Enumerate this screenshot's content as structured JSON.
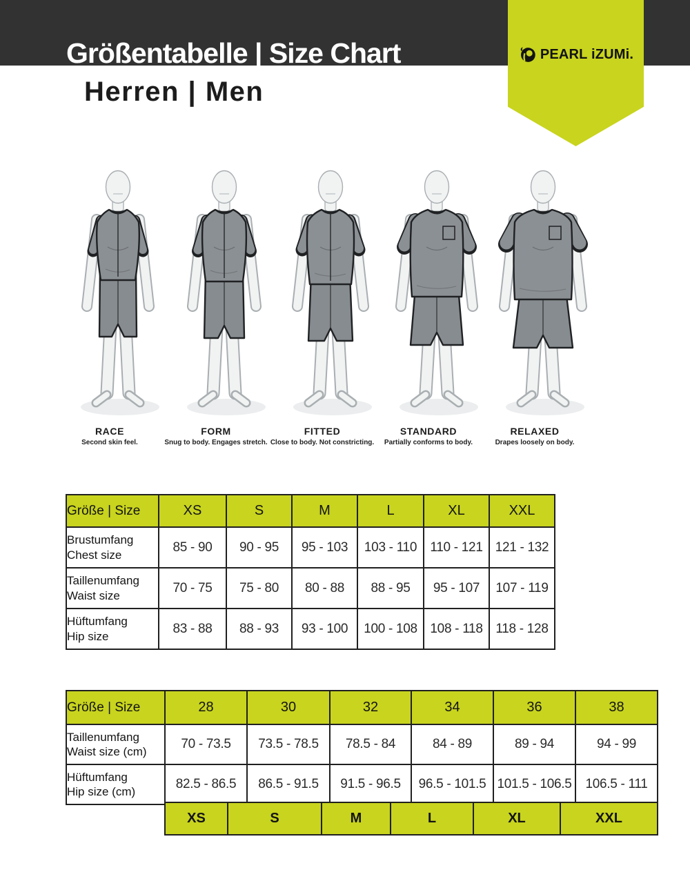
{
  "header": {
    "title": "Größentabelle | Size Chart",
    "subtitle": "Herren | Men",
    "brand": "PEARL iZUMi."
  },
  "colors": {
    "accent_lime": "#c8d41e",
    "header_bar": "#323232",
    "garment_gray": "#8b9094"
  },
  "fits": [
    {
      "name": "RACE",
      "caption": "Second skin feel."
    },
    {
      "name": "FORM",
      "caption": "Snug to body. Engages stretch."
    },
    {
      "name": "FITTED",
      "caption": "Close to body. Not constricting."
    },
    {
      "name": "STANDARD",
      "caption": "Partially conforms to body."
    },
    {
      "name": "RELAXED",
      "caption": "Drapes loosely on body."
    }
  ],
  "size_table": {
    "header": [
      "Größe | Size",
      "XS",
      "S",
      "M",
      "L",
      "XL",
      "XXL"
    ],
    "rows": [
      {
        "label_de": "Brustumfang",
        "label_en": "Chest size",
        "values": [
          "85 - 90",
          "90 - 95",
          "95 - 103",
          "103 - 110",
          "110 - 121",
          "121 - 132"
        ]
      },
      {
        "label_de": "Taillenumfang",
        "label_en": "Waist size",
        "values": [
          "70 - 75",
          "75 - 80",
          "80 - 88",
          "88 - 95",
          "95 - 107",
          "107 - 119"
        ]
      },
      {
        "label_de": "Hüftumfang",
        "label_en": "Hip size",
        "values": [
          "83 - 88",
          "88 - 93",
          "93 - 100",
          "100 - 108",
          "108 - 118",
          "118 - 128"
        ]
      }
    ]
  },
  "pants_table": {
    "header": [
      "Größe | Size",
      "28",
      "30",
      "32",
      "34",
      "36",
      "38"
    ],
    "rows": [
      {
        "label_de": "Taillenumfang",
        "label_en": "Waist size (cm)",
        "values": [
          "70 - 73.5",
          "73.5 - 78.5",
          "78.5 - 84",
          "84 - 89",
          "89 - 94",
          "94 - 99"
        ]
      },
      {
        "label_de": "Hüftumfang",
        "label_en": "Hip size (cm)",
        "values": [
          "82.5 - 86.5",
          "86.5 - 91.5",
          "91.5 - 96.5",
          "96.5 - 101.5",
          "101.5 - 106.5",
          "106.5 - 111"
        ]
      }
    ],
    "letter_sizes": [
      "XS",
      "S",
      "M",
      "L",
      "XL",
      "XXL"
    ]
  }
}
